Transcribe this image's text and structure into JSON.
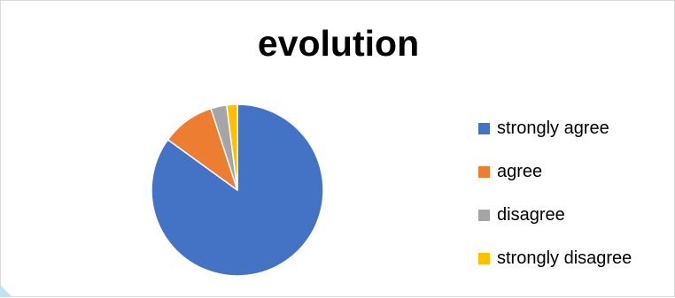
{
  "chart_data": {
    "type": "pie",
    "title": "evolution",
    "categories": [
      "strongly agree",
      "agree",
      "disagree",
      "strongly disagree"
    ],
    "values": [
      85,
      10,
      3,
      2
    ],
    "colors": [
      "#4472c4",
      "#ed7d31",
      "#a5a5a5",
      "#ffc000"
    ],
    "legend_position": "right"
  }
}
